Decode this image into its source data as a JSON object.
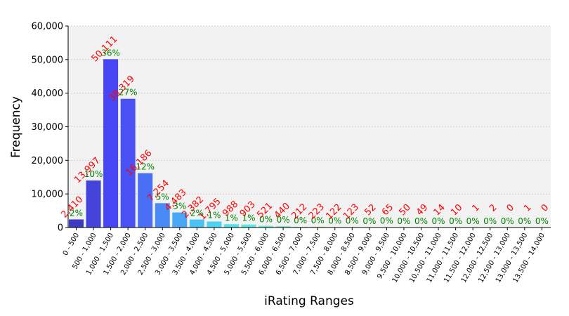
{
  "chart_data": {
    "type": "bar",
    "xlabel": "iRating Ranges",
    "ylabel": "Frequency",
    "ylim": [
      0,
      60000
    ],
    "yticks": [
      "0",
      "10,000",
      "20,000",
      "30,000",
      "40,000",
      "50,000",
      "60,000"
    ],
    "ytick_values": [
      0,
      10000,
      20000,
      30000,
      40000,
      50000,
      60000
    ],
    "grid": true,
    "categories": [
      "0 - 500",
      "500 - 1,000",
      "1,000 - 1,500",
      "1,500 - 2,000",
      "2,000 - 2,500",
      "2,500 - 3,000",
      "3,000 - 3,500",
      "3,500 - 4,000",
      "4,000 - 4,500",
      "4,500 - 5,000",
      "5,000 - 5,500",
      "5,500 - 6,000",
      "6,000 - 6,500",
      "6,500 - 7,000",
      "7,000 - 7,500",
      "7,500 - 8,000",
      "8,000 - 8,500",
      "8,500 - 9,000",
      "9,000 - 9,500",
      "9,500 - 10,000",
      "10,000 - 10,500",
      "10,500 - 11,000",
      "11,000 - 11,500",
      "11,500 - 12,000",
      "12,000 - 12,500",
      "12,500 - 13,000",
      "13,000 - 13,500",
      "13,500 - 14,000"
    ],
    "values": [
      2410,
      13997,
      50111,
      38319,
      16186,
      7254,
      4483,
      2382,
      1795,
      988,
      903,
      521,
      440,
      212,
      223,
      122,
      123,
      52,
      65,
      50,
      49,
      14,
      10,
      1,
      2,
      0,
      1,
      0
    ],
    "value_labels": [
      "2,410",
      "13,997",
      "50,111",
      "38,319",
      "16,186",
      "7,254",
      "4,483",
      "2,382",
      "1,795",
      "988",
      "903",
      "521",
      "440",
      "212",
      "223",
      "122",
      "123",
      "52",
      "65",
      "50",
      "49",
      "14",
      "10",
      "1",
      "2",
      "0",
      "1",
      "0"
    ],
    "percent_labels": [
      "2%",
      "10%",
      "36%",
      "27%",
      "12%",
      "5%",
      "3%",
      "2%",
      "1%",
      "1%",
      "1%",
      "0%",
      "0%",
      "0%",
      "0%",
      "0%",
      "0%",
      "0%",
      "0%",
      "0%",
      "0%",
      "0%",
      "0%",
      "0%",
      "0%",
      "0%",
      "0%",
      "0%"
    ],
    "bar_colors": [
      "#3b3bc4",
      "#4444dd",
      "#4646f4",
      "#4a52f6",
      "#4a6ef6",
      "#4a8af6",
      "#4aa6f6",
      "#4ac2f6",
      "#4ad4f2",
      "#4ae4ea",
      "#5ae8e2",
      "#6ee8d2",
      "#88e6c0",
      "#a0e4a8",
      "#b4e296",
      "#c6dc86",
      "#d2d47a",
      "#dcca70",
      "#e4bf66",
      "#eab25e",
      "#eea656",
      "#f09a50",
      "#f28e4a",
      "#f48244",
      "#f5763f",
      "#f66a3a",
      "#f75e36",
      "#f85232"
    ],
    "plot_background": "#f2f2f2",
    "count_label_color": "#ff0000",
    "percent_label_color": "#008000"
  }
}
